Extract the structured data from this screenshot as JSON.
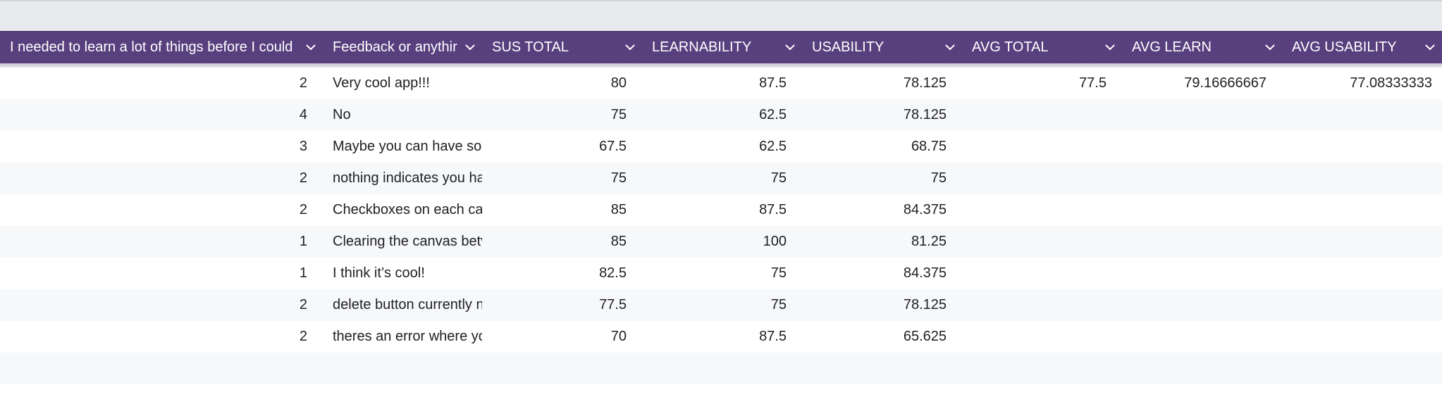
{
  "columns": [
    {
      "key": "learn_a_lot",
      "label": "I needed to learn a lot of things before I could"
    },
    {
      "key": "feedback",
      "label": "Feedback or anythir"
    },
    {
      "key": "sus_total",
      "label": "SUS TOTAL"
    },
    {
      "key": "learnability",
      "label": "LEARNABILITY"
    },
    {
      "key": "usability",
      "label": "USABILITY"
    },
    {
      "key": "avg_total",
      "label": "AVG TOTAL"
    },
    {
      "key": "avg_learn",
      "label": "AVG LEARN"
    },
    {
      "key": "avg_usability",
      "label": "AVG USABILITY"
    }
  ],
  "rows": [
    {
      "learn_a_lot": "2",
      "feedback": "Very cool app!!!",
      "sus_total": "80",
      "learnability": "87.5",
      "usability": "78.125",
      "avg_total": "77.5",
      "avg_learn": "79.16666667",
      "avg_usability": "77.08333333"
    },
    {
      "learn_a_lot": "4",
      "feedback": "No",
      "sus_total": "75",
      "learnability": "62.5",
      "usability": "78.125",
      "avg_total": "",
      "avg_learn": "",
      "avg_usability": ""
    },
    {
      "learn_a_lot": "3",
      "feedback": "Maybe you can have sor",
      "sus_total": "67.5",
      "learnability": "62.5",
      "usability": "68.75",
      "avg_total": "",
      "avg_learn": "",
      "avg_usability": ""
    },
    {
      "learn_a_lot": "2",
      "feedback": "nothing indicates you ha",
      "sus_total": "75",
      "learnability": "75",
      "usability": "75",
      "avg_total": "",
      "avg_learn": "",
      "avg_usability": ""
    },
    {
      "learn_a_lot": "2",
      "feedback": "Checkboxes on each car",
      "sus_total": "85",
      "learnability": "87.5",
      "usability": "84.375",
      "avg_total": "",
      "avg_learn": "",
      "avg_usability": ""
    },
    {
      "learn_a_lot": "1",
      "feedback": "Clearing the canvas betv",
      "sus_total": "85",
      "learnability": "100",
      "usability": "81.25",
      "avg_total": "",
      "avg_learn": "",
      "avg_usability": ""
    },
    {
      "learn_a_lot": "1",
      "feedback": "I think it’s cool!",
      "sus_total": "82.5",
      "learnability": "75",
      "usability": "84.375",
      "avg_total": "",
      "avg_learn": "",
      "avg_usability": ""
    },
    {
      "learn_a_lot": "2",
      "feedback": "delete button currently n",
      "sus_total": "77.5",
      "learnability": "75",
      "usability": "78.125",
      "avg_total": "",
      "avg_learn": "",
      "avg_usability": ""
    },
    {
      "learn_a_lot": "2",
      "feedback": "theres an error where yo",
      "sus_total": "70",
      "learnability": "87.5",
      "usability": "65.625",
      "avg_total": "",
      "avg_learn": "",
      "avg_usability": ""
    }
  ],
  "colors": {
    "header_bg": "#583f7e",
    "header_text": "#ffffff",
    "row_alt_bg": "#f7f8fa",
    "toolbar_bg": "#e8eaed"
  },
  "icons": {
    "column_menu": "chevron-down-icon"
  }
}
